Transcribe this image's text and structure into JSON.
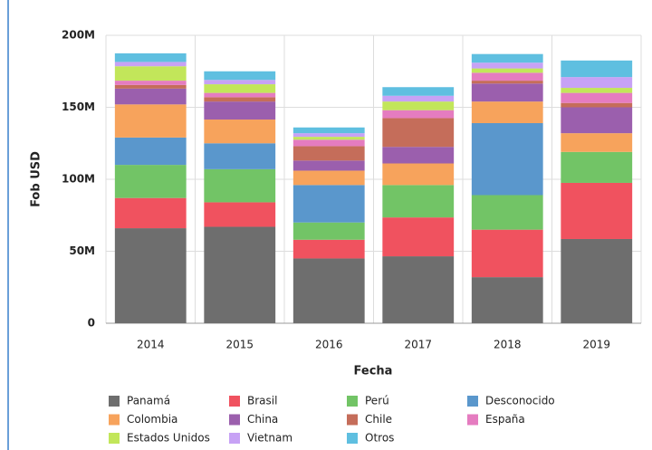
{
  "chart_data": {
    "type": "stacked_bar",
    "xlabel": "Fecha",
    "ylabel": "Fob USD",
    "categories": [
      "2014",
      "2015",
      "2016",
      "2017",
      "2018",
      "2019"
    ],
    "ylim": [
      0,
      200000000
    ],
    "yticks": [
      0,
      {
        "value": 50000000,
        "label": "50M"
      },
      {
        "value": 100000000,
        "label": "100M"
      },
      {
        "value": 150000000,
        "label": "150M"
      },
      {
        "value": 200000000,
        "label": "200M"
      }
    ],
    "grid": true,
    "series": [
      {
        "name": "Panamá",
        "color": "#6e6e6e",
        "values": [
          66000000,
          67000000,
          45000000,
          46500000,
          32000000,
          58500000
        ]
      },
      {
        "name": "Brasil",
        "color": "#f0525f",
        "values": [
          21000000,
          17000000,
          13000000,
          27000000,
          33000000,
          39000000
        ]
      },
      {
        "name": "Perú",
        "color": "#72c466",
        "values": [
          23000000,
          23000000,
          12000000,
          22500000,
          24000000,
          21500000
        ]
      },
      {
        "name": "Desconocido",
        "color": "#5a97cc",
        "values": [
          19000000,
          18000000,
          26000000,
          0,
          50000000,
          0
        ]
      },
      {
        "name": "Colombia",
        "color": "#f7a35c",
        "values": [
          23000000,
          16500000,
          10000000,
          15000000,
          15000000,
          13000000
        ]
      },
      {
        "name": "China",
        "color": "#9b5fad",
        "values": [
          11000000,
          12500000,
          7000000,
          11500000,
          12500000,
          18000000
        ]
      },
      {
        "name": "Chile",
        "color": "#c56d5a",
        "values": [
          2500000,
          3000000,
          10000000,
          20000000,
          2000000,
          3000000
        ]
      },
      {
        "name": "España",
        "color": "#e57cc0",
        "values": [
          3000000,
          3000000,
          4500000,
          5500000,
          5500000,
          7000000
        ]
      },
      {
        "name": "Estados Unidos",
        "color": "#c2e65a",
        "values": [
          10000000,
          6000000,
          2000000,
          6000000,
          3000000,
          3500000
        ]
      },
      {
        "name": "Vietnam",
        "color": "#c7a2f5",
        "values": [
          3000000,
          3000000,
          2500000,
          4000000,
          4000000,
          7500000
        ]
      },
      {
        "name": "Otros",
        "color": "#5fbfe0",
        "values": [
          6000000,
          6000000,
          4000000,
          6000000,
          6000000,
          11500000
        ]
      }
    ]
  }
}
